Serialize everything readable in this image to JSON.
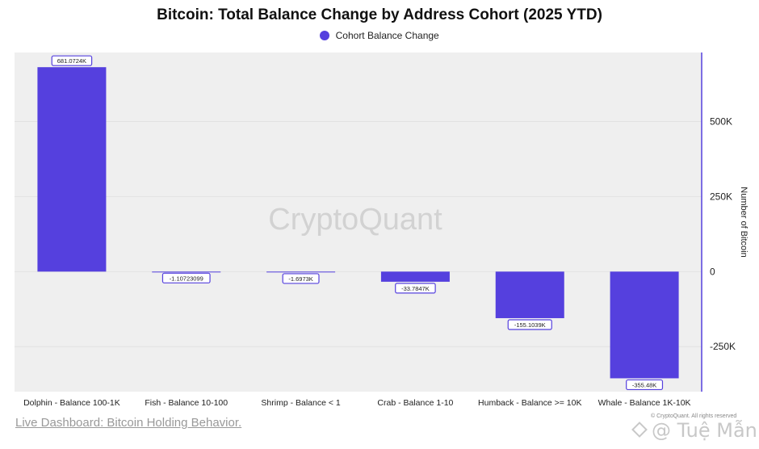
{
  "chart_data": {
    "type": "bar",
    "title": "Bitcoin: Total Balance Change by Address Cohort (2025 YTD)",
    "xlabel": "",
    "ylabel": "Number of Bitcoin",
    "ylim": [
      -400000,
      730000
    ],
    "yticks": [
      -250000,
      0,
      250000,
      500000
    ],
    "ytick_labels": [
      "-250K",
      "0",
      "250K",
      "500K"
    ],
    "grid": true,
    "legend_position": "top-center",
    "categories": [
      "Dolphin - Balance 100-1K",
      "Fish - Balance 10-100",
      "Shrimp - Balance < 1",
      "Crab - Balance 1-10",
      "Humback - Balance >= 10K",
      "Whale - Balance 1K-10K"
    ],
    "series": [
      {
        "name": "Cohort Balance Change",
        "color": "#5540de",
        "values": [
          681072.4,
          -1.10723099,
          -1697.3,
          -33784.7,
          -155103.9,
          -355480
        ],
        "data_labels": [
          "681.0724K",
          "-1.10723099",
          "-1.6973K",
          "-33.7847K",
          "-155.1039K",
          "-355.48K"
        ]
      }
    ]
  },
  "footer": {
    "dashboard_link": "Live Dashboard: Bitcoin Holding Behavior.",
    "copyright": "© CryptoQuant. All rights reserved",
    "watermark": "CryptoQuant",
    "watermark_user": "@ Tuệ Mẫn"
  }
}
